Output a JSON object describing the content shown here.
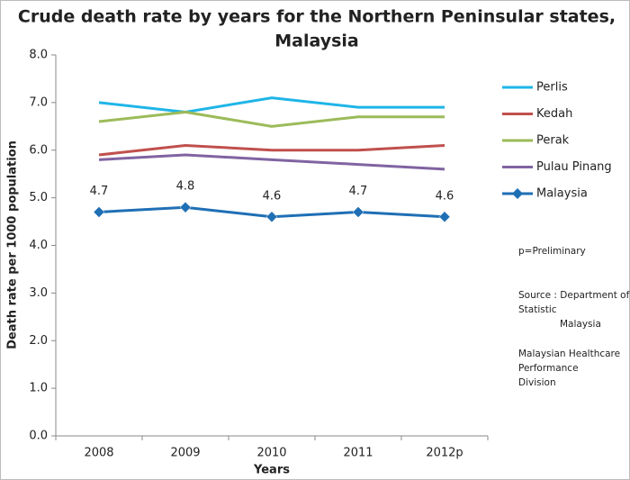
{
  "chart_data": {
    "type": "line",
    "title": [
      "Crude death rate by years for the Northern Peninsular states,",
      "Malaysia"
    ],
    "x_label": "Years",
    "y_label": "Death rate per 1000 population",
    "categories": [
      "2008",
      "2009",
      "2010",
      "2011",
      "2012p"
    ],
    "ylim": [
      0,
      8
    ],
    "yticks": [
      {
        "value": 0,
        "label": "0.0"
      },
      {
        "value": 1,
        "label": "1.0"
      },
      {
        "value": 2,
        "label": "2.0"
      },
      {
        "value": 3,
        "label": "3.0"
      },
      {
        "value": 4,
        "label": "4.0"
      },
      {
        "value": 5,
        "label": "5.0"
      },
      {
        "value": 6,
        "label": "6.0"
      },
      {
        "value": 7,
        "label": "7.0"
      },
      {
        "value": 8,
        "label": "8.0"
      }
    ],
    "grid": false,
    "legend": "right",
    "series": [
      {
        "name": "Perlis",
        "color": "#1fb5e8",
        "values": [
          7.0,
          6.8,
          7.1,
          6.9,
          6.9
        ]
      },
      {
        "name": "Kedah",
        "color": "#c0504d",
        "values": [
          5.9,
          6.1,
          6.0,
          6.0,
          6.1
        ]
      },
      {
        "name": "Perak",
        "color": "#9bbb59",
        "values": [
          6.6,
          6.8,
          6.5,
          6.7,
          6.7
        ]
      },
      {
        "name": "Pulau Pinang",
        "color": "#8064a2",
        "values": [
          5.8,
          5.9,
          5.8,
          5.7,
          5.6
        ]
      },
      {
        "name": "Malaysia",
        "color": "#1f6fb5",
        "marker": "diamond",
        "show_labels": true,
        "values": [
          4.7,
          4.8,
          4.6,
          4.7,
          4.6
        ]
      }
    ],
    "annotations": [
      [
        "p=Preliminary"
      ],
      [
        "Source : Department of",
        "Statistic",
        "Malaysia"
      ],
      [
        "Malaysian Healthcare",
        "Performance",
        "Division"
      ]
    ]
  }
}
